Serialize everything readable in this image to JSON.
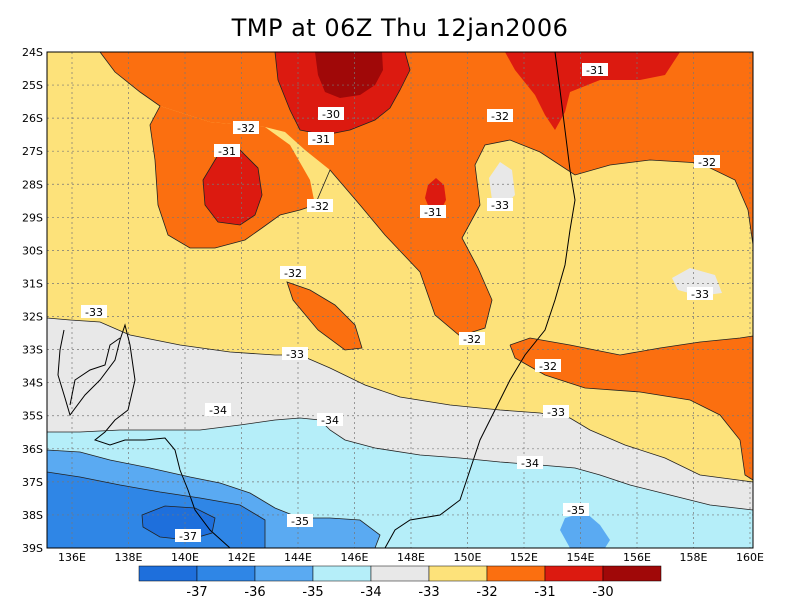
{
  "title": "TMP at 06Z Thu 12jan2006",
  "lat_labels": [
    "24S",
    "25S",
    "26S",
    "27S",
    "28S",
    "29S",
    "30S",
    "31S",
    "32S",
    "33S",
    "34S",
    "35S",
    "36S",
    "37S",
    "38S",
    "39S"
  ],
  "lon_labels": [
    "136E",
    "138E",
    "140E",
    "142E",
    "144E",
    "146E",
    "148E",
    "150E",
    "152E",
    "154E",
    "156E",
    "158E",
    "160E"
  ],
  "colors": {
    "c_37": "#1e6fdc",
    "c_36": "#2f86e6",
    "c_35": "#5aaaf2",
    "c_34": "#b5eef9",
    "c_33": "#e8e8e8",
    "c_32": "#fde27a",
    "c_31": "#fb6f10",
    "c_30": "#dc1a10",
    "c_29": "#a00808"
  },
  "contour_labels": {
    "l1": "-31",
    "l2": "-30",
    "l3": "-31",
    "l4": "-32",
    "l5": "-31",
    "l6": "-32",
    "l7": "-31",
    "l8": "-33",
    "l9": "-32",
    "l10": "-32",
    "l11": "-33",
    "l12": "-33",
    "l13": "-32",
    "l14": "-32",
    "l15": "-32",
    "l16": "-33",
    "l17": "-34",
    "l18": "-34",
    "l19": "-33",
    "l20": "-34",
    "l21": "-35",
    "l22": "-35",
    "l23": "-37"
  },
  "colorbar": {
    "labels": [
      "-37",
      "-36",
      "-35",
      "-34",
      "-33",
      "-32",
      "-31",
      "-30"
    ]
  }
}
